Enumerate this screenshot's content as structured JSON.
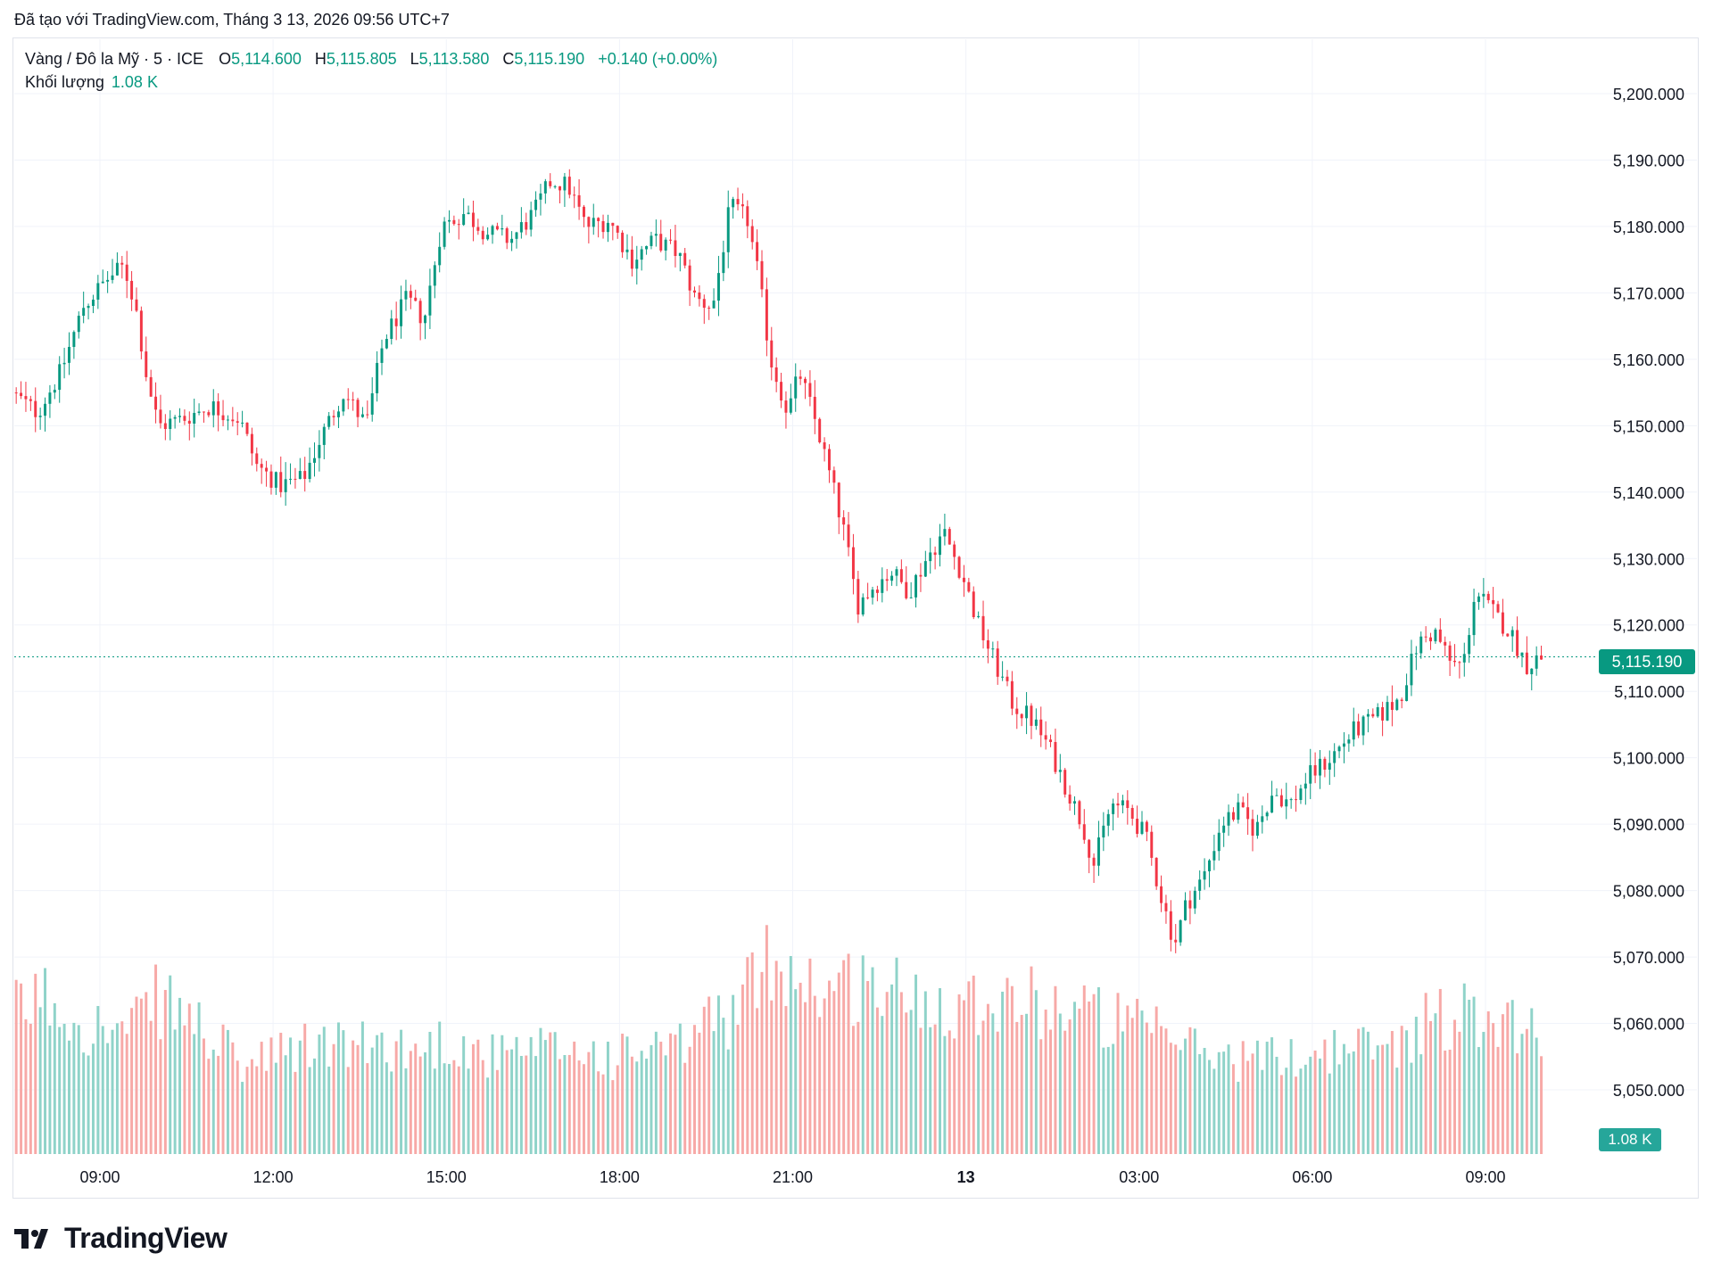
{
  "header": {
    "created_with": "Đã tạo với TradingView.com, Tháng 3 13, 2026 09:56 UTC+7"
  },
  "legend": {
    "symbol": "Vàng / Đô la Mỹ · 5 · ICE",
    "o_label": "O",
    "o_value": "5,114.600",
    "h_label": "H",
    "h_value": "5,115.805",
    "l_label": "L",
    "l_value": "5,113.580",
    "c_label": "C",
    "c_value": "5,115.190",
    "change": "+0.140 (+0.00%)",
    "volume_label": "Khối lượng",
    "volume_value": "1.08 K"
  },
  "badges": {
    "last_price": "5,115.190",
    "last_volume": "1.08 K"
  },
  "brand": {
    "name": "TradingView"
  },
  "colors": {
    "up": "#089981",
    "down": "#f23645",
    "up_volume": "#8fd3c9",
    "down_volume": "#f7a9a7"
  },
  "chart_data": {
    "type": "candlestick",
    "ylim": [
      5042,
      5208
    ],
    "y_ticks": [
      "5,200.000",
      "5,190.000",
      "5,180.000",
      "5,170.000",
      "5,160.000",
      "5,150.000",
      "5,140.000",
      "5,130.000",
      "5,120.000",
      "5,110.000",
      "5,100.000",
      "5,090.000",
      "5,080.000",
      "5,070.000",
      "5,060.000",
      "5,050.000"
    ],
    "y_tick_values": [
      5200,
      5190,
      5180,
      5170,
      5160,
      5150,
      5140,
      5130,
      5120,
      5110,
      5100,
      5090,
      5080,
      5070,
      5060,
      5050
    ],
    "x_ticks": [
      "09:00",
      "12:00",
      "15:00",
      "18:00",
      "21:00",
      "13",
      "03:00",
      "06:00",
      "09:00"
    ],
    "x_tick_hours": [
      9,
      12,
      15,
      18,
      21,
      24,
      27,
      30,
      33
    ],
    "x_range_hours": [
      7.55,
      34.0
    ],
    "last_price": 5115.19,
    "price_path": [
      [
        7.55,
        5155
      ],
      [
        8.0,
        5152
      ],
      [
        8.4,
        5158
      ],
      [
        8.8,
        5168
      ],
      [
        9.2,
        5172
      ],
      [
        9.5,
        5174
      ],
      [
        9.7,
        5168
      ],
      [
        9.9,
        5157
      ],
      [
        10.1,
        5150
      ],
      [
        10.5,
        5151
      ],
      [
        11.0,
        5153
      ],
      [
        11.5,
        5151
      ],
      [
        11.8,
        5144
      ],
      [
        12.2,
        5141
      ],
      [
        12.6,
        5142
      ],
      [
        12.9,
        5148
      ],
      [
        13.3,
        5155
      ],
      [
        13.7,
        5150
      ],
      [
        14.0,
        5163
      ],
      [
        14.4,
        5169
      ],
      [
        14.7,
        5166
      ],
      [
        15.0,
        5180
      ],
      [
        15.4,
        5182
      ],
      [
        15.8,
        5179
      ],
      [
        16.2,
        5178
      ],
      [
        16.6,
        5182
      ],
      [
        16.9,
        5187
      ],
      [
        17.2,
        5186
      ],
      [
        17.5,
        5180
      ],
      [
        17.9,
        5181
      ],
      [
        18.3,
        5175
      ],
      [
        18.7,
        5178
      ],
      [
        19.1,
        5176
      ],
      [
        19.4,
        5169
      ],
      [
        19.7,
        5168
      ],
      [
        20.0,
        5183
      ],
      [
        20.3,
        5181
      ],
      [
        20.5,
        5172
      ],
      [
        20.7,
        5160
      ],
      [
        21.0,
        5152
      ],
      [
        21.2,
        5158
      ],
      [
        21.5,
        5150
      ],
      [
        21.8,
        5140
      ],
      [
        22.0,
        5133
      ],
      [
        22.2,
        5123
      ],
      [
        22.5,
        5126
      ],
      [
        22.8,
        5128
      ],
      [
        23.1,
        5125
      ],
      [
        23.4,
        5130
      ],
      [
        23.7,
        5134
      ],
      [
        24.0,
        5128
      ],
      [
        24.3,
        5120
      ],
      [
        24.6,
        5114
      ],
      [
        24.9,
        5108
      ],
      [
        25.2,
        5106
      ],
      [
        25.5,
        5102
      ],
      [
        25.8,
        5096
      ],
      [
        26.1,
        5090
      ],
      [
        26.3,
        5084
      ],
      [
        26.6,
        5093
      ],
      [
        26.9,
        5092
      ],
      [
        27.2,
        5088
      ],
      [
        27.5,
        5078
      ],
      [
        27.7,
        5072
      ],
      [
        27.9,
        5078
      ],
      [
        28.2,
        5082
      ],
      [
        28.5,
        5090
      ],
      [
        28.8,
        5092
      ],
      [
        29.1,
        5089
      ],
      [
        29.4,
        5095
      ],
      [
        29.7,
        5093
      ],
      [
        30.0,
        5097
      ],
      [
        30.4,
        5100
      ],
      [
        30.8,
        5104
      ],
      [
        31.2,
        5106
      ],
      [
        31.6,
        5109
      ],
      [
        31.9,
        5117
      ],
      [
        32.2,
        5119
      ],
      [
        32.5,
        5114
      ],
      [
        32.7,
        5114
      ],
      [
        32.9,
        5125
      ],
      [
        33.2,
        5122
      ],
      [
        33.5,
        5119
      ],
      [
        33.8,
        5114
      ],
      [
        34.0,
        5115
      ]
    ],
    "volume_profile": [
      [
        7.55,
        58
      ],
      [
        8.0,
        66
      ],
      [
        8.5,
        58
      ],
      [
        9.0,
        52
      ],
      [
        9.5,
        50
      ],
      [
        10.0,
        64
      ],
      [
        10.5,
        58
      ],
      [
        11.0,
        46
      ],
      [
        11.5,
        36
      ],
      [
        12.0,
        40
      ],
      [
        12.5,
        44
      ],
      [
        13.0,
        46
      ],
      [
        13.5,
        44
      ],
      [
        14.0,
        46
      ],
      [
        14.5,
        42
      ],
      [
        15.0,
        48
      ],
      [
        15.5,
        42
      ],
      [
        16.0,
        40
      ],
      [
        16.5,
        42
      ],
      [
        17.0,
        44
      ],
      [
        17.5,
        42
      ],
      [
        18.0,
        40
      ],
      [
        18.5,
        44
      ],
      [
        19.0,
        42
      ],
      [
        19.5,
        56
      ],
      [
        20.0,
        58
      ],
      [
        20.3,
        70
      ],
      [
        20.7,
        84
      ],
      [
        21.0,
        76
      ],
      [
        21.4,
        70
      ],
      [
        21.8,
        68
      ],
      [
        22.2,
        72
      ],
      [
        22.6,
        68
      ],
      [
        23.0,
        66
      ],
      [
        23.5,
        64
      ],
      [
        24.0,
        64
      ],
      [
        24.5,
        66
      ],
      [
        25.0,
        64
      ],
      [
        25.5,
        62
      ],
      [
        26.0,
        60
      ],
      [
        26.5,
        56
      ],
      [
        27.0,
        52
      ],
      [
        27.5,
        48
      ],
      [
        28.0,
        44
      ],
      [
        28.5,
        40
      ],
      [
        29.0,
        40
      ],
      [
        29.5,
        40
      ],
      [
        30.0,
        42
      ],
      [
        30.5,
        44
      ],
      [
        31.0,
        44
      ],
      [
        31.5,
        46
      ],
      [
        32.0,
        56
      ],
      [
        32.5,
        58
      ],
      [
        33.0,
        58
      ],
      [
        33.5,
        56
      ],
      [
        34.0,
        48
      ]
    ],
    "volume_max_ref": 100
  }
}
